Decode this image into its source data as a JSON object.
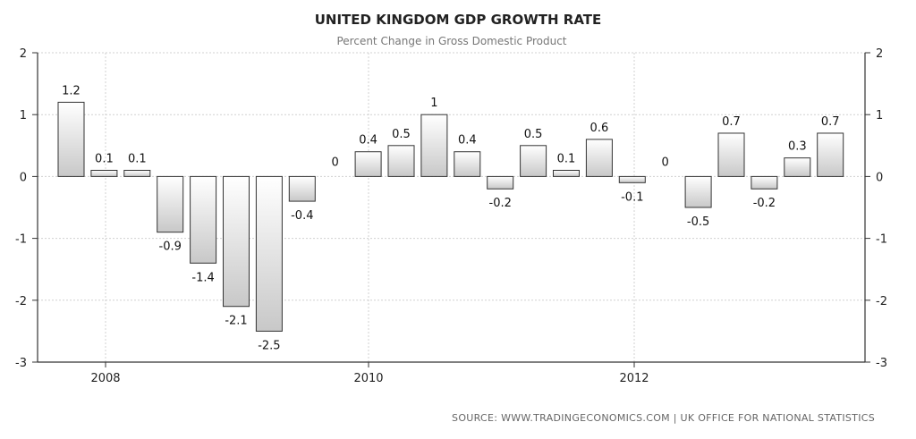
{
  "chart_data": {
    "type": "bar",
    "title": "UNITED KINGDOM GDP GROWTH RATE",
    "subtitle": "Percent Change in Gross Domestic Product",
    "source": "SOURCE:  WWW.TRADINGECONOMICS.COM  |  UK OFFICE FOR NATIONAL STATISTICS",
    "ylim": [
      -3,
      2
    ],
    "yticks": [
      2,
      1,
      0,
      -1,
      -2,
      -3
    ],
    "xticks": [
      "2008",
      "2010",
      "2012"
    ],
    "grid": true,
    "values": [
      1.2,
      0.1,
      0.1,
      -0.9,
      -1.4,
      -2.1,
      -2.5,
      -0.4,
      0,
      0.4,
      0.5,
      1,
      0.4,
      -0.2,
      0.5,
      0.1,
      0.6,
      -0.1,
      0,
      -0.5,
      0.7,
      -0.2,
      0.3,
      0.7
    ],
    "labels": [
      "1.2",
      "0.1",
      "0.1",
      "-0.9",
      "-1.4",
      "-2.1",
      "-2.5",
      "-0.4",
      "0",
      "0.4",
      "0.5",
      "1",
      "0.4",
      "-0.2",
      "0.5",
      "0.1",
      "0.6",
      "-0.1",
      "0",
      "-0.5",
      "0.7",
      "-0.2",
      "0.3",
      "0.7"
    ],
    "bar_fill_colors": [
      "#ffffff",
      "#c8c8c8"
    ],
    "bar_stroke_color": "#333333",
    "grid_color": "#d0d0d0"
  }
}
